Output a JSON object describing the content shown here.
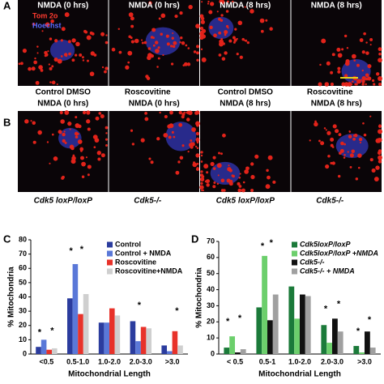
{
  "panel_a": {
    "label": "A",
    "stain_labels": [
      "Tom 2o",
      "Hoechst"
    ],
    "images": [
      {
        "title": "NMDA (0 hrs)",
        "caption": "Control DMSO"
      },
      {
        "title": "NMDA (0 hrs)",
        "caption": "Roscovitine"
      },
      {
        "title": "NMDA (8 hrs)",
        "caption": "Control DMSO"
      },
      {
        "title": "NMDA (8 hrs)",
        "caption": "Roscovitine"
      }
    ]
  },
  "panel_b": {
    "label": "B",
    "images": [
      {
        "title": "NMDA (0 hrs)",
        "caption": "Cdk5 loxP/loxP"
      },
      {
        "title": "NMDA (0 hrs)",
        "caption": "Cdk5-/-"
      },
      {
        "title": "NMDA (8 hrs)",
        "caption": "Cdk5 loxP/loxP"
      },
      {
        "title": "NMDA (8 hrs)",
        "caption": "Cdk5-/-"
      }
    ]
  },
  "chart_data": [
    {
      "type": "bar",
      "panel_label": "C",
      "ylabel": "% Mitochondria",
      "xlabel": "Mitochondrial Length",
      "categories": [
        "<0.5",
        "0.5-1.0",
        "1.0-2.0",
        "2.0-3.0",
        ">3.0"
      ],
      "series": [
        {
          "name": "Control",
          "color": "#2b3c9e",
          "values": [
            5,
            39,
            22,
            23,
            6
          ]
        },
        {
          "name": "Control + NMDA",
          "color": "#5a78d8",
          "values": [
            10,
            63,
            22,
            9,
            2
          ]
        },
        {
          "name": "Roscovitine",
          "color": "#e8322a",
          "values": [
            3,
            28,
            32,
            19,
            16
          ]
        },
        {
          "name": "Roscovitine+NMDA",
          "color": "#cfcfcf",
          "values": [
            4,
            42,
            27,
            18,
            6
          ]
        }
      ],
      "ylim": [
        0,
        80
      ],
      "yticks": [
        0,
        10,
        20,
        30,
        40,
        50,
        60,
        70,
        80
      ],
      "significance": [
        "*",
        "*",
        "*",
        "*",
        "*",
        "*"
      ]
    },
    {
      "type": "bar",
      "panel_label": "D",
      "ylabel": "% Mitochondria",
      "xlabel": "Mitochondrial Length",
      "categories": [
        "< 0.5",
        "0.5-1",
        "1.0-2.0",
        "2.0-3.0",
        ">3.0"
      ],
      "series": [
        {
          "name": "Cdk5loxP/loxP",
          "color": "#1b7a3a",
          "values": [
            4,
            29,
            42,
            18,
            5
          ]
        },
        {
          "name": "Cdk5loxP/loxP +NMDA",
          "color": "#6ccf6c",
          "values": [
            11,
            61,
            22,
            7,
            1
          ]
        },
        {
          "name": "Cdk5-/-",
          "color": "#111111",
          "values": [
            1,
            21,
            37,
            22,
            14
          ]
        },
        {
          "name": "Cdk5-/- + NMDA",
          "color": "#a0a0a0",
          "values": [
            3,
            37,
            36,
            14,
            4
          ]
        }
      ],
      "ylim": [
        0,
        70
      ],
      "yticks": [
        0,
        10,
        20,
        30,
        40,
        50,
        60,
        70
      ],
      "significance": [
        "*",
        "*",
        "*",
        "*",
        "*",
        "*",
        "*",
        "*"
      ]
    }
  ]
}
